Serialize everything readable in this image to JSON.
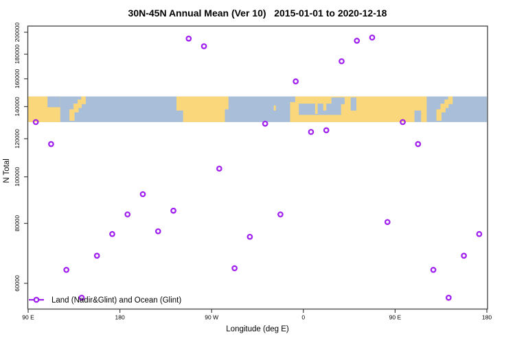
{
  "chart_data": {
    "type": "scatter",
    "title": "30N-45N Annual Mean (Ver 10)   2015-01-01 to 2020-12-18",
    "xlabel": "Longitude (deg E)",
    "ylabel": "N Total",
    "x_axis": {
      "scale": "linear",
      "range_deg_e": [
        90,
        540
      ],
      "ticks": [
        {
          "lon": 90,
          "label": "90 E"
        },
        {
          "lon": 180,
          "label": "180"
        },
        {
          "lon": 270,
          "label": "90 W"
        },
        {
          "lon": 360,
          "label": "0"
        },
        {
          "lon": 450,
          "label": "90 E"
        },
        {
          "lon": 540,
          "label": "180"
        }
      ]
    },
    "y_axis": {
      "scale": "log",
      "range": [
        54000,
        206000
      ],
      "ticks": [
        200000,
        180000,
        160000,
        140000,
        120000,
        100000,
        80000,
        60000
      ],
      "tick_labels": [
        "200000",
        "180000",
        "160000",
        "140000",
        "120000",
        "100000",
        "80000",
        "60000"
      ]
    },
    "legend": {
      "label": "Land (Nadir&Glint) and Ocean (Glint)",
      "marker": "open-circle-with-line",
      "marker_color": "#a020f0"
    },
    "point_style": {
      "shape": "open-circle",
      "color": "#a020f0"
    },
    "points": [
      {
        "lon": 97.5,
        "n_total": 130000
      },
      {
        "lon": 112.5,
        "n_total": 117000
      },
      {
        "lon": 127.5,
        "n_total": 64000
      },
      {
        "lon": 142.5,
        "n_total": 56000
      },
      {
        "lon": 157.5,
        "n_total": 68500
      },
      {
        "lon": 172.5,
        "n_total": 76000
      },
      {
        "lon": 187.5,
        "n_total": 83500
      },
      {
        "lon": 202.5,
        "n_total": 92000
      },
      {
        "lon": 217.5,
        "n_total": 77000
      },
      {
        "lon": 232.5,
        "n_total": 85000
      },
      {
        "lon": 247.5,
        "n_total": 194000
      },
      {
        "lon": 262.5,
        "n_total": 187000
      },
      {
        "lon": 277.5,
        "n_total": 104000
      },
      {
        "lon": 292.5,
        "n_total": 64500
      },
      {
        "lon": 307.5,
        "n_total": 75000
      },
      {
        "lon": 322.5,
        "n_total": 129000
      },
      {
        "lon": 337.5,
        "n_total": 83500
      },
      {
        "lon": 352.5,
        "n_total": 158000
      },
      {
        "lon": 367.5,
        "n_total": 124000
      },
      {
        "lon": 382.5,
        "n_total": 125000
      },
      {
        "lon": 397.5,
        "n_total": 174000
      },
      {
        "lon": 412.5,
        "n_total": 192000
      },
      {
        "lon": 427.5,
        "n_total": 195000
      },
      {
        "lon": 442.5,
        "n_total": 80500
      },
      {
        "lon": 457.5,
        "n_total": 130000
      },
      {
        "lon": 472.5,
        "n_total": 117000
      },
      {
        "lon": 487.5,
        "n_total": 64000
      },
      {
        "lon": 502.5,
        "n_total": 56000
      },
      {
        "lon": 517.5,
        "n_total": 68500
      },
      {
        "lon": 532.5,
        "n_total": 76000
      }
    ],
    "map_band": {
      "description": "30N-45N latitude strip of world map drawn as reference band",
      "top_value": 147000,
      "bottom_value": 130000,
      "ocean_color": "#a9bfd9",
      "land_color": "#fbd77c",
      "land_patches": [
        {
          "name": "east-asia",
          "lon0": 90,
          "lon1": 121.5,
          "f0": 0,
          "f1": 1
        },
        {
          "name": "japan-sw",
          "lon0": 130.5,
          "lon1": 135.5,
          "f0": 0.5,
          "f1": 0.95
        },
        {
          "name": "japan-mid",
          "lon0": 134.5,
          "lon1": 139.5,
          "f0": 0.28,
          "f1": 0.62
        },
        {
          "name": "japan-ne",
          "lon0": 138.5,
          "lon1": 142.5,
          "f0": 0.12,
          "f1": 0.45
        },
        {
          "name": "hokkaido",
          "lon0": 142,
          "lon1": 146.5,
          "f0": 0,
          "f1": 0.3
        },
        {
          "name": "north-america",
          "lon0": 235.5,
          "lon1": 286.5,
          "f0": 0,
          "f1": 1
        },
        {
          "name": "azores",
          "lon0": 331,
          "lon1": 333,
          "f0": 0.35,
          "f1": 0.55
        },
        {
          "name": "eurafrica",
          "lon0": 347,
          "lon1": 481,
          "f0": 0,
          "f1": 1
        },
        {
          "name": "japan2-sw",
          "lon0": 490.5,
          "lon1": 495.5,
          "f0": 0.5,
          "f1": 0.95
        },
        {
          "name": "japan2-mid",
          "lon0": 494.5,
          "lon1": 499.5,
          "f0": 0.28,
          "f1": 0.62
        },
        {
          "name": "japan2-ne",
          "lon0": 498.5,
          "lon1": 502.5,
          "f0": 0.12,
          "f1": 0.45
        },
        {
          "name": "hokkaido2",
          "lon0": 502,
          "lon1": 506.5,
          "f0": 0,
          "f1": 0.3
        }
      ],
      "sea_patches": [
        {
          "name": "sea-of-japan-west",
          "lon0": 109,
          "lon1": 121.5,
          "f0": 0,
          "f1": 0.42
        },
        {
          "name": "pacific-bite",
          "lon0": 235.5,
          "lon1": 242,
          "f0": 0.55,
          "f1": 1
        },
        {
          "name": "atlantic-bite",
          "lon0": 283,
          "lon1": 286.5,
          "f0": 0.5,
          "f1": 1
        },
        {
          "name": "bay-of-biscay",
          "lon0": 347,
          "lon1": 352,
          "f0": 0,
          "f1": 0.22
        },
        {
          "name": "mediterranean",
          "lon0": 355.5,
          "lon1": 397,
          "f0": 0.28,
          "f1": 0.72
        },
        {
          "name": "black-sea",
          "lon0": 387.5,
          "lon1": 400.5,
          "f0": 0.04,
          "f1": 0.3
        },
        {
          "name": "caspian-sea",
          "lon0": 406.5,
          "lon1": 412,
          "f0": 0.04,
          "f1": 0.55
        },
        {
          "name": "yellow-sea",
          "lon0": 469,
          "lon1": 475.5,
          "f0": 0.55,
          "f1": 1
        }
      ],
      "peninsulas": [
        {
          "name": "italy",
          "lon0": 371.5,
          "lon1": 374,
          "f0": 0.18,
          "f1": 0.68
        },
        {
          "name": "greece",
          "lon0": 379.5,
          "lon1": 382.5,
          "f0": 0.2,
          "f1": 0.55
        }
      ]
    }
  }
}
